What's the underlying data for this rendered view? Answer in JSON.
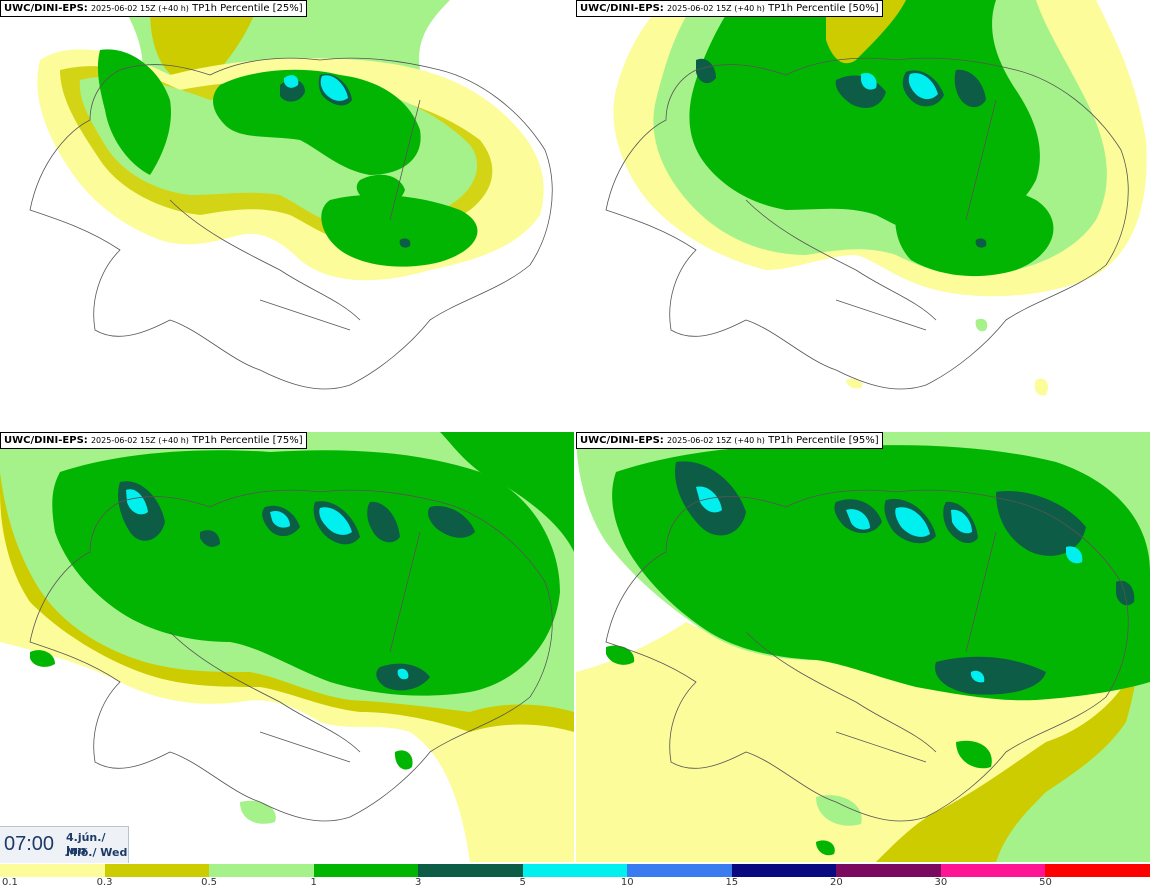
{
  "panels": [
    {
      "source": "UWC/DINI-EPS:",
      "run": "2025-06-02 15Z (+40 h)",
      "field": "TP1h Percentile [25%]"
    },
    {
      "source": "UWC/DINI-EPS:",
      "run": "2025-06-02 15Z (+40 h)",
      "field": "TP1h Percentile [50%]"
    },
    {
      "source": "UWC/DINI-EPS:",
      "run": "2025-06-02 15Z (+40 h)",
      "field": "TP1h Percentile [75%]"
    },
    {
      "source": "UWC/DINI-EPS:",
      "run": "2025-06-02 15Z (+40 h)",
      "field": "TP1h Percentile [95%]"
    }
  ],
  "time": {
    "clock": "07:00",
    "date": "4.jún./ Jun",
    "weekday": "Mið./ Wed"
  },
  "legend": {
    "labels": [
      "0.1",
      "0.3",
      "0.5",
      "1",
      "3",
      "5",
      "10",
      "15",
      "20",
      "30",
      "50"
    ],
    "colors": [
      "#fcfc9a",
      "#cccc00",
      "#a6f28a",
      "#03b503",
      "#0d5c45",
      "#00f0f0",
      "#3a7bf0",
      "#0a0a80",
      "#7a0a60",
      "#ff1493",
      "#ff0000"
    ]
  },
  "palette": {
    "light_yellow": "#fcfc9a",
    "olive": "#cccc00",
    "light_green": "#a6f28a",
    "green": "#03b503",
    "dark_green": "#0d5c45",
    "cyan": "#00f0f0"
  }
}
